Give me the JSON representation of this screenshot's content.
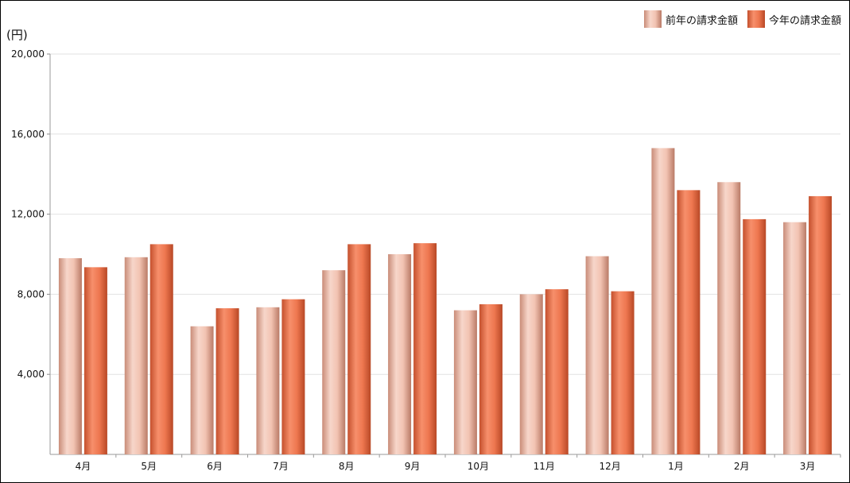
{
  "chart_data": {
    "type": "bar",
    "unit_label": "(円)",
    "categories": [
      "4月",
      "5月",
      "6月",
      "7月",
      "8月",
      "9月",
      "10月",
      "11月",
      "12月",
      "1月",
      "2月",
      "3月"
    ],
    "series": [
      {
        "name": "前年の請求金額",
        "color": "#e8b3a1",
        "values": [
          9800,
          9850,
          6400,
          7350,
          9200,
          10000,
          7200,
          8000,
          9900,
          15300,
          13600,
          11600
        ]
      },
      {
        "name": "今年の請求金額",
        "color": "#e96b43",
        "values": [
          9350,
          10500,
          7300,
          7750,
          10500,
          10550,
          7500,
          8250,
          8150,
          13200,
          11750,
          12900
        ]
      }
    ],
    "yticks": [
      4000,
      8000,
      12000,
      16000,
      20000
    ],
    "ytick_labels": [
      "4,000",
      "8,000",
      "12,000",
      "16,000",
      "20,000"
    ],
    "ylim": [
      0,
      20000
    ],
    "grid": true,
    "legend_position": "top-right"
  }
}
